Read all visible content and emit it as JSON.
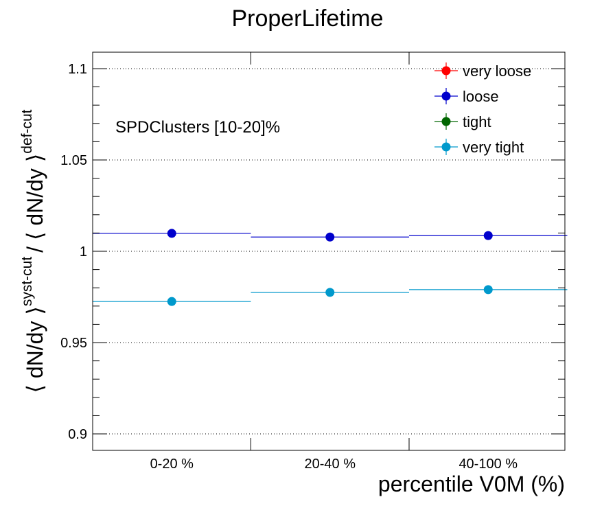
{
  "chart_data": {
    "type": "scatter",
    "title": "ProperLifetime",
    "xlabel": "percentile V0M (%)",
    "ylabel_parts": {
      "base": "⟨ dN/dy ⟩",
      "num_sup": "syst-cut",
      "sep": "/ ⟨ dN/dy ⟩",
      "den_sup": "def-cut"
    },
    "categories": [
      "0-20 %",
      "20-40 %",
      "40-100 %"
    ],
    "ylim": [
      0.891,
      1.109
    ],
    "yticks": [
      0.9,
      0.95,
      1,
      1.05,
      1.1
    ],
    "ytick_labels": [
      "0.9",
      "0.95",
      "1",
      "1.05",
      "1.1"
    ],
    "grid": "horizontal dotted at major ticks",
    "legend_position": "top-right",
    "annotation": "SPDClusters [10-20]%",
    "series": [
      {
        "name": "very loose",
        "color": "#ff0000",
        "values": [
          null,
          null,
          null
        ]
      },
      {
        "name": "loose",
        "color": "#0000cc",
        "values": [
          1.0098,
          1.0078,
          1.0086
        ]
      },
      {
        "name": "tight",
        "color": "#006600",
        "values": [
          null,
          null,
          null
        ]
      },
      {
        "name": "very tight",
        "color": "#0099cc",
        "values": [
          0.9725,
          0.9775,
          0.979
        ]
      }
    ]
  }
}
